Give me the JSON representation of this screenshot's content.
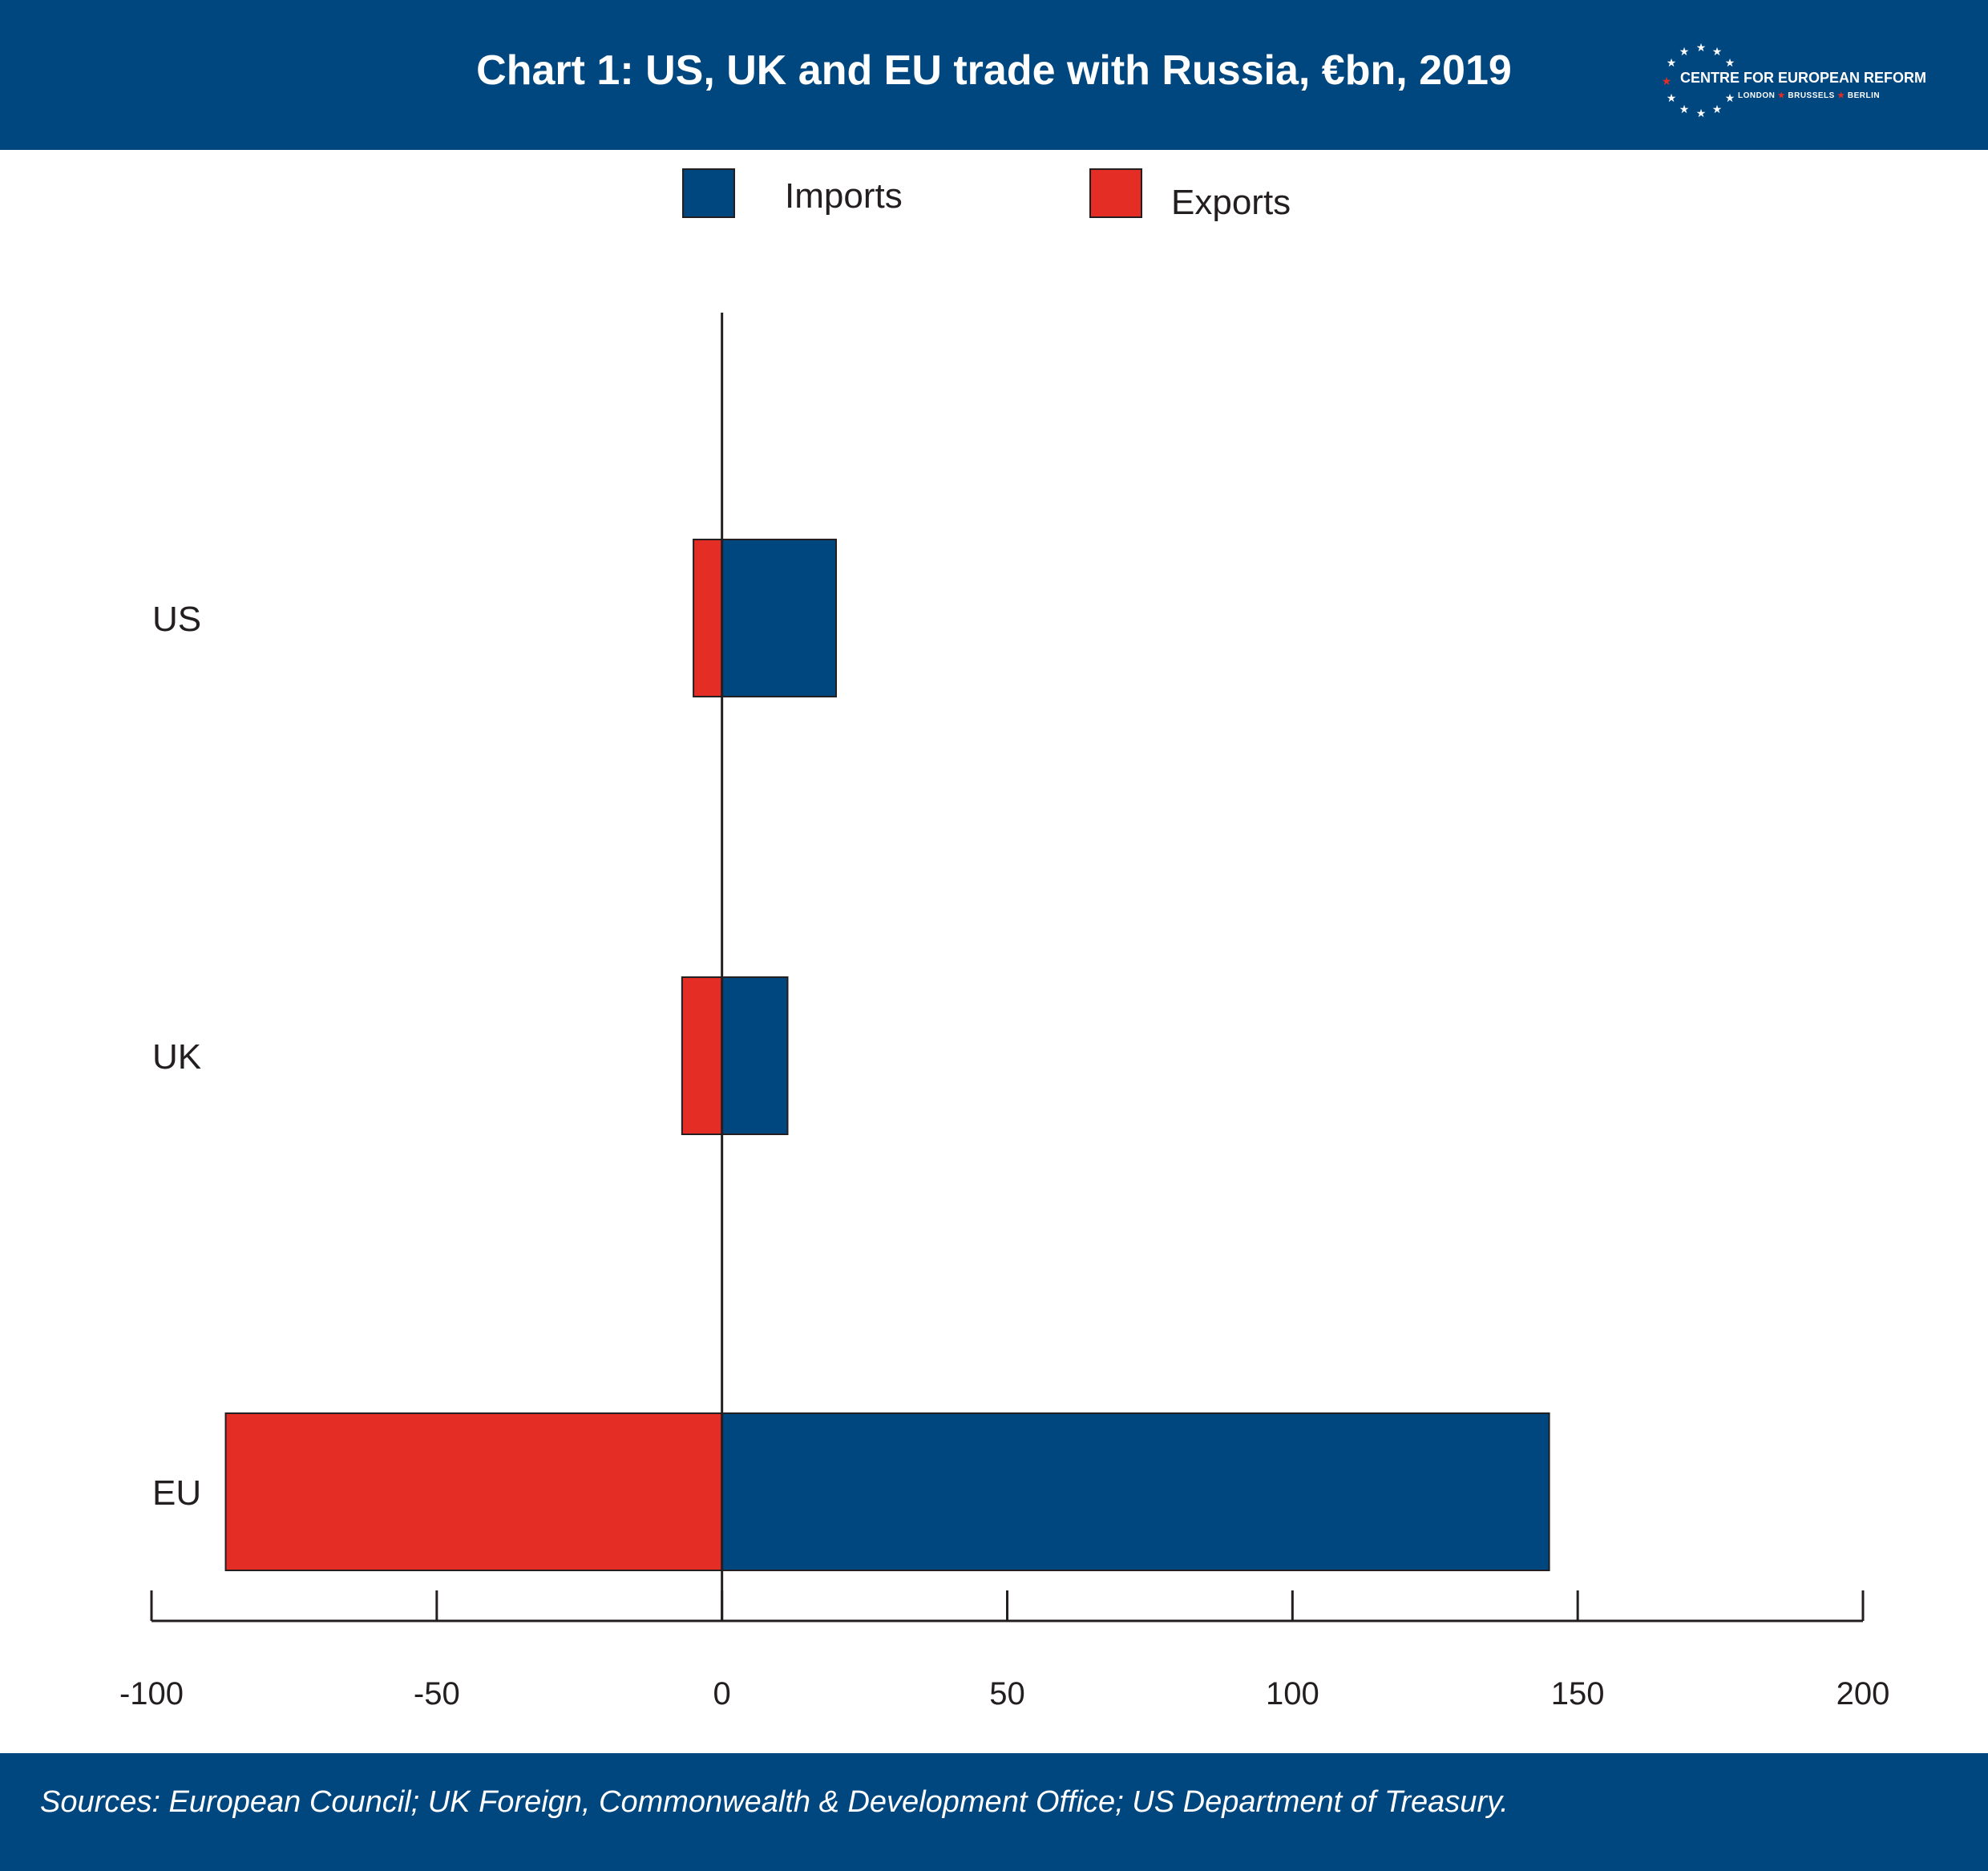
{
  "header": {
    "title": "Chart 1: US, UK and EU trade with Russia, €bn, 2019",
    "logo_text": "CENTRE FOR EUROPEAN REFORM",
    "logo_cities": [
      "LONDON",
      "BRUSSELS",
      "BERLIN"
    ]
  },
  "footer": {
    "source": "Sources: European Council; UK Foreign, Commonwealth & Development Office; US Department of Treasury."
  },
  "colors": {
    "navy": "#00467f",
    "imports": "#00467f",
    "exports": "#e32d25",
    "text": "#231f20"
  },
  "chart_data": {
    "type": "bar",
    "orientation": "horizontal",
    "categories": [
      "US",
      "UK",
      "EU"
    ],
    "series": [
      {
        "name": "Imports",
        "values": [
          20,
          11.5,
          145
        ]
      },
      {
        "name": "Exports",
        "values": [
          -5,
          -7,
          -87
        ]
      }
    ],
    "xlim": [
      -100,
      200
    ],
    "xticks": [
      -100,
      -50,
      0,
      50,
      100,
      150,
      200
    ],
    "grid": false,
    "legend_position": "top-center"
  }
}
